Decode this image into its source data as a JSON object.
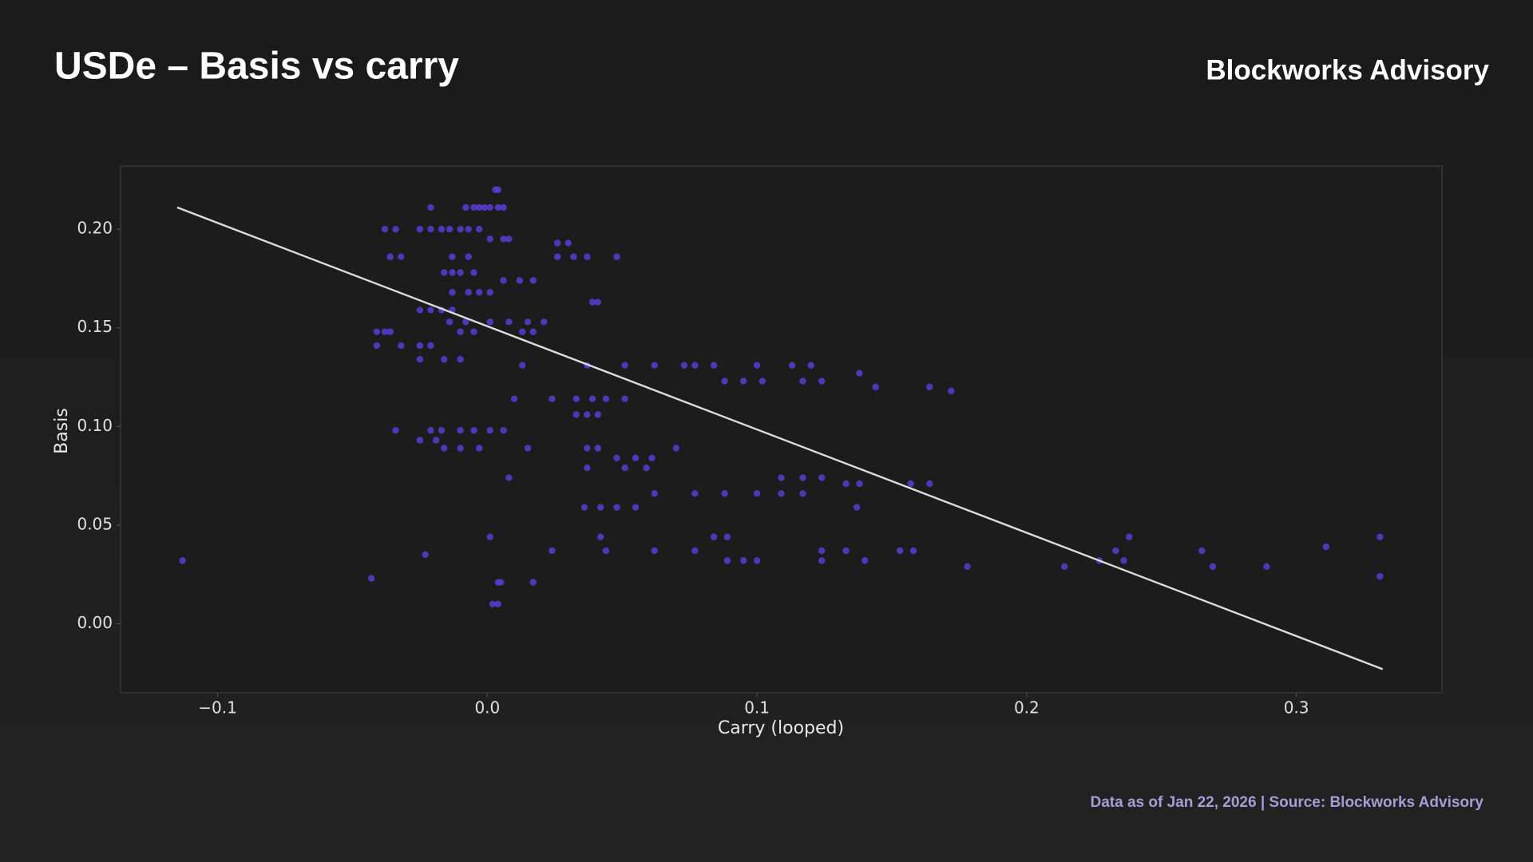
{
  "chart_data": {
    "type": "scatter",
    "title": "USDe – Basis vs carry",
    "brand": "Blockworks Advisory",
    "footer": "Data as of Jan 22, 2026 | Source: Blockworks Advisory",
    "x_label": "Carry (looped)",
    "y_label": "Basis",
    "color": "#5a3bd6",
    "xlim": [
      -0.136,
      0.354
    ],
    "ylim": [
      -0.035,
      0.232
    ],
    "xticks": [
      {
        "value": -0.1,
        "label": "−0.1"
      },
      {
        "value": 0,
        "label": "0.0"
      },
      0.1,
      0.2,
      0.3
    ],
    "yticks": [
      {
        "value": 0,
        "label": "0.00"
      },
      {
        "value": 0.05,
        "label": "0.05"
      },
      {
        "value": 0.1,
        "label": "0.10"
      },
      {
        "value": 0.15,
        "label": "0.15"
      },
      {
        "value": 0.2,
        "label": "0.20"
      }
    ],
    "trend_line": {
      "x": [
        -0.115,
        0.332
      ],
      "y": [
        0.211,
        -0.023
      ],
      "color": "#dcdcdc"
    },
    "x": [
      0.003,
      0.004,
      -0.008,
      -0.005,
      -0.003,
      -0.001,
      0.001,
      0.004,
      0.006,
      -0.021,
      -0.038,
      -0.034,
      -0.025,
      -0.021,
      -0.017,
      -0.014,
      -0.01,
      -0.007,
      -0.003,
      0.001,
      0.006,
      0.008,
      0.026,
      0.03,
      -0.036,
      -0.032,
      -0.013,
      -0.007,
      0.026,
      0.032,
      0.037,
      0.048,
      -0.016,
      -0.013,
      -0.01,
      -0.005,
      0.006,
      0.012,
      0.017,
      -0.013,
      -0.007,
      -0.003,
      0.001,
      0.039,
      0.041,
      -0.025,
      -0.021,
      -0.017,
      -0.013,
      -0.014,
      -0.008,
      0.001,
      0.008,
      0.015,
      0.021,
      -0.041,
      -0.038,
      -0.036,
      -0.01,
      -0.005,
      0.013,
      0.017,
      -0.041,
      -0.032,
      -0.025,
      -0.021,
      -0.025,
      -0.016,
      -0.01,
      0.013,
      0.037,
      0.051,
      0.062,
      0.073,
      0.077,
      0.084,
      0.1,
      0.113,
      0.12,
      0.088,
      0.095,
      0.102,
      0.117,
      0.124,
      0.138,
      0.144,
      0.164,
      0.172,
      0.01,
      0.024,
      0.033,
      0.039,
      0.044,
      0.051,
      0.033,
      0.037,
      0.041,
      -0.034,
      -0.021,
      -0.017,
      -0.01,
      -0.005,
      0.001,
      0.006,
      -0.025,
      -0.019,
      -0.016,
      -0.01,
      -0.003,
      0.015,
      0.037,
      0.041,
      0.07,
      0.048,
      0.055,
      0.061,
      0.037,
      0.051,
      0.059,
      0.008,
      0.109,
      0.117,
      0.124,
      0.062,
      0.077,
      0.088,
      0.1,
      0.109,
      0.117,
      0.133,
      0.138,
      0.157,
      0.164,
      0.036,
      0.042,
      0.048,
      0.055,
      0.137,
      0.001,
      0.042,
      0.084,
      0.089,
      0.238,
      0.331,
      0.024,
      0.044,
      0.062,
      0.077,
      0.124,
      0.133,
      0.153,
      0.158,
      0.265,
      0.233,
      -0.113,
      0.089,
      0.095,
      0.1,
      0.124,
      0.14,
      0.227,
      0.236,
      0.178,
      0.214,
      0.269,
      0.289,
      0.331,
      0.311,
      -0.043,
      0.004,
      0.005,
      0.017,
      0.002,
      0.004,
      -0.023
    ],
    "y": [
      0.22,
      0.22,
      0.211,
      0.211,
      0.211,
      0.211,
      0.211,
      0.211,
      0.211,
      0.211,
      0.2,
      0.2,
      0.2,
      0.2,
      0.2,
      0.2,
      0.2,
      0.2,
      0.2,
      0.195,
      0.195,
      0.195,
      0.193,
      0.193,
      0.186,
      0.186,
      0.186,
      0.186,
      0.186,
      0.186,
      0.186,
      0.186,
      0.178,
      0.178,
      0.178,
      0.178,
      0.174,
      0.174,
      0.174,
      0.168,
      0.168,
      0.168,
      0.168,
      0.163,
      0.163,
      0.159,
      0.159,
      0.159,
      0.159,
      0.153,
      0.153,
      0.153,
      0.153,
      0.153,
      0.153,
      0.148,
      0.148,
      0.148,
      0.148,
      0.148,
      0.148,
      0.148,
      0.141,
      0.141,
      0.141,
      0.141,
      0.134,
      0.134,
      0.134,
      0.131,
      0.131,
      0.131,
      0.131,
      0.131,
      0.131,
      0.131,
      0.131,
      0.131,
      0.131,
      0.123,
      0.123,
      0.123,
      0.123,
      0.123,
      0.127,
      0.12,
      0.12,
      0.118,
      0.114,
      0.114,
      0.114,
      0.114,
      0.114,
      0.114,
      0.106,
      0.106,
      0.106,
      0.098,
      0.098,
      0.098,
      0.098,
      0.098,
      0.098,
      0.098,
      0.093,
      0.093,
      0.089,
      0.089,
      0.089,
      0.089,
      0.089,
      0.089,
      0.089,
      0.084,
      0.084,
      0.084,
      0.079,
      0.079,
      0.079,
      0.074,
      0.074,
      0.074,
      0.074,
      0.066,
      0.066,
      0.066,
      0.066,
      0.066,
      0.066,
      0.071,
      0.071,
      0.071,
      0.071,
      0.059,
      0.059,
      0.059,
      0.059,
      0.059,
      0.044,
      0.044,
      0.044,
      0.044,
      0.044,
      0.044,
      0.037,
      0.037,
      0.037,
      0.037,
      0.037,
      0.037,
      0.037,
      0.037,
      0.037,
      0.037,
      0.032,
      0.032,
      0.032,
      0.032,
      0.032,
      0.032,
      0.032,
      0.032,
      0.029,
      0.029,
      0.029,
      0.029,
      0.024,
      0.039,
      0.023,
      0.021,
      0.021,
      0.021,
      0.01,
      0.01,
      0.035
    ]
  }
}
